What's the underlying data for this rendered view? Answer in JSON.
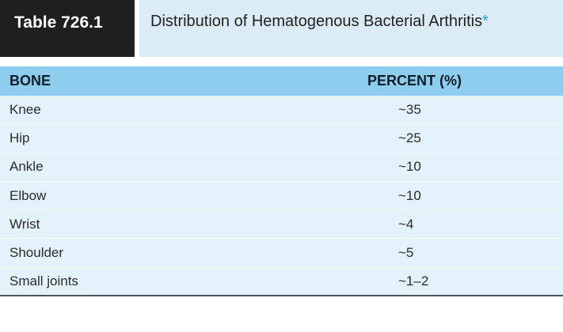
{
  "table": {
    "label": "Table 726.1",
    "title": "Distribution of Hematogenous Bacterial Arthritis",
    "title_marker": "*",
    "columns": [
      "BONE",
      "PERCENT (%)"
    ],
    "rows": [
      {
        "bone": "Knee",
        "percent": "~35"
      },
      {
        "bone": "Hip",
        "percent": "~25"
      },
      {
        "bone": "Ankle",
        "percent": "~10"
      },
      {
        "bone": "Elbow",
        "percent": "~10"
      },
      {
        "bone": "Wrist",
        "percent": "~4"
      },
      {
        "bone": "Shoulder",
        "percent": "~5"
      },
      {
        "bone": "Small joints",
        "percent": "~1–2"
      }
    ]
  },
  "colors": {
    "label_bg": "#1f1f1f",
    "title_bg": "#dcecf7",
    "header_bg": "#8fcdee",
    "row_bg": "#e4f2fb",
    "asterisk": "#1fa7d8"
  }
}
